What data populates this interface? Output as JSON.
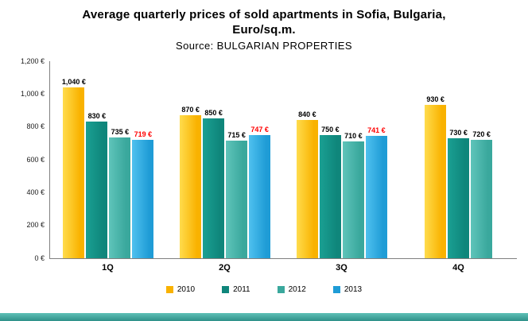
{
  "chart_data": {
    "type": "bar",
    "title_line1": "Average quarterly prices of sold apartments in Sofia, Bulgaria,",
    "title_line2": "Euro/sq.m.",
    "source": "Source: BULGARIAN PROPERTIES",
    "categories": [
      "1Q",
      "2Q",
      "3Q",
      "4Q"
    ],
    "series": [
      {
        "name": "2010",
        "color": "#F9B200",
        "color_light": "#FFDC4D",
        "label_color": "#000000",
        "values": [
          1040,
          870,
          840,
          930
        ],
        "labels": [
          "1,040 €",
          "870 €",
          "840 €",
          "930 €"
        ]
      },
      {
        "name": "2011",
        "color": "#0F867B",
        "color_light": "#1AA093",
        "label_color": "#000000",
        "values": [
          830,
          850,
          750,
          730
        ],
        "labels": [
          "830 €",
          "850 €",
          "750 €",
          "730 €"
        ]
      },
      {
        "name": "2012",
        "color": "#3AA89D",
        "color_light": "#5FC4BA",
        "label_color": "#000000",
        "values": [
          735,
          715,
          710,
          720
        ],
        "labels": [
          "735 €",
          "715 €",
          "710 €",
          "720 €"
        ]
      },
      {
        "name": "2013",
        "color": "#1F9CD6",
        "color_light": "#4FC1EF",
        "label_color": "#FF0000",
        "values": [
          719,
          747,
          741,
          null
        ],
        "labels": [
          "719 €",
          "747 €",
          "741 €",
          ""
        ]
      }
    ],
    "ylim": [
      0,
      1200
    ],
    "yticks": [
      "1,200 €",
      "1,000 €",
      "800 €",
      "600 €",
      "400 €",
      "200 €",
      "0 €"
    ],
    "legend_position": "bottom",
    "grid": false
  }
}
